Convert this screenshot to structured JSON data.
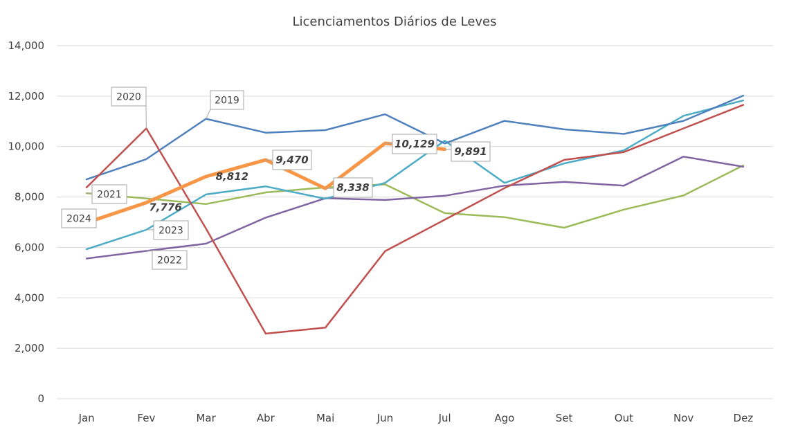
{
  "chart_data": {
    "type": "line",
    "title": "Licenciamentos Diários de Leves",
    "categories": [
      "Jan",
      "Fev",
      "Mar",
      "Abr",
      "Mai",
      "Jun",
      "Jul",
      "Ago",
      "Set",
      "Out",
      "Nov",
      "Dez"
    ],
    "y_ticks": [
      "0",
      "2,000",
      "4,000",
      "6,000",
      "8,000",
      "10,000",
      "12,000",
      "14,000"
    ],
    "ylim": [
      0,
      14000
    ],
    "grid": true,
    "series": [
      {
        "name": "2019",
        "color": "#4f81bd",
        "values": [
          8700,
          9500,
          11100,
          10550,
          10650,
          11280,
          10120,
          11020,
          10680,
          10500,
          11020,
          12020
        ]
      },
      {
        "name": "2020",
        "color": "#c0504d",
        "values": [
          8380,
          10720,
          6750,
          2580,
          2820,
          5850,
          7100,
          8350,
          9470,
          9780,
          10720,
          11650
        ]
      },
      {
        "name": "2021",
        "color": "#9bbb59",
        "values": [
          8150,
          7940,
          7720,
          8180,
          8380,
          8500,
          7360,
          7200,
          6780,
          7500,
          8060,
          9250
        ]
      },
      {
        "name": "2022",
        "color": "#8064a2",
        "values": [
          5560,
          5860,
          6150,
          7180,
          7950,
          7880,
          8050,
          8450,
          8600,
          8450,
          9600,
          9200
        ]
      },
      {
        "name": "2023",
        "color": "#4bacc6",
        "values": [
          5930,
          6700,
          8100,
          8420,
          7930,
          8560,
          10230,
          8560,
          9330,
          9850,
          11220,
          11830
        ]
      },
      {
        "name": "2024",
        "color": "#f79646",
        "values": [
          6980,
          7776,
          8812,
          9470,
          8338,
          10129,
          9891,
          null,
          null,
          null,
          null,
          null
        ]
      }
    ],
    "data_labels": [
      {
        "series": "2024",
        "category": "Fev",
        "text": "7,776"
      },
      {
        "series": "2024",
        "category": "Mar",
        "text": "8,812"
      },
      {
        "series": "2024",
        "category": "Abr",
        "text": "9,470"
      },
      {
        "series": "2024",
        "category": "Mai",
        "text": "8,338"
      },
      {
        "series": "2024",
        "category": "Jun",
        "text": "10,129"
      },
      {
        "series": "2024",
        "category": "Jul",
        "text": "9,891"
      }
    ]
  }
}
